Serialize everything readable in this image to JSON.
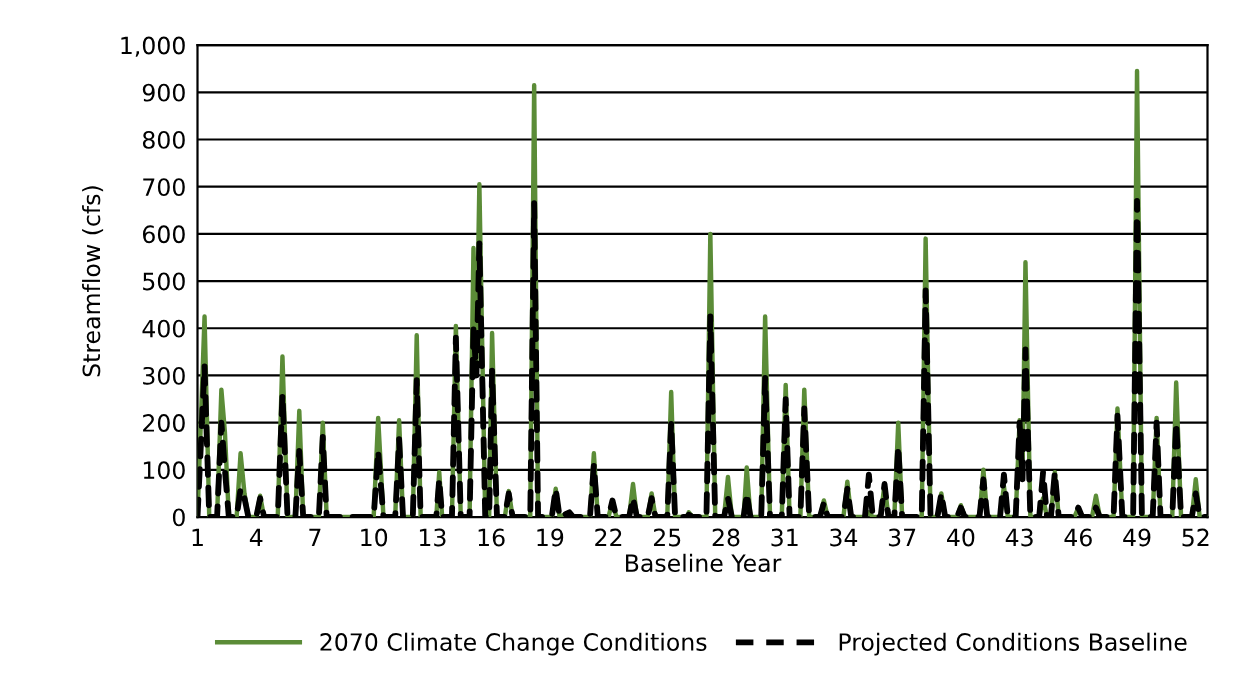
{
  "chart_data": {
    "type": "line",
    "xlabel": "Baseline Year",
    "ylabel": "Streamflow (cfs)",
    "x": [
      1.0,
      1.36,
      1.6,
      2.0,
      2.22,
      2.4,
      2.6,
      3.0,
      3.2,
      3.4,
      3.6,
      4.0,
      4.2,
      4.4,
      5.1,
      5.34,
      5.6,
      6.0,
      6.2,
      6.4,
      7.2,
      7.4,
      7.6,
      10.0,
      10.23,
      10.5,
      11.1,
      11.3,
      11.5,
      12.0,
      12.2,
      12.4,
      13.2,
      13.35,
      13.5,
      14.0,
      14.2,
      14.45,
      14.9,
      15.1,
      15.25,
      15.4,
      15.7,
      15.9,
      16.05,
      16.3,
      16.7,
      16.9,
      17.1,
      18.0,
      18.2,
      18.4,
      19.1,
      19.3,
      19.5,
      20.0,
      20.2,
      21.05,
      21.25,
      21.45,
      22.0,
      22.2,
      22.4,
      23.05,
      23.25,
      23.45,
      24.0,
      24.2,
      24.4,
      25.0,
      25.2,
      25.4,
      26.0,
      26.1,
      26.3,
      27.0,
      27.2,
      27.45,
      27.9,
      28.1,
      28.3,
      28.9,
      29.06,
      29.25,
      29.8,
      30.0,
      30.25,
      30.85,
      31.05,
      31.25,
      31.8,
      32.0,
      32.25,
      32.8,
      33.0,
      33.2,
      34.0,
      34.2,
      34.4,
      35.1,
      35.3,
      35.5,
      35.9,
      36.1,
      36.3,
      36.6,
      36.8,
      37.0,
      38.0,
      38.2,
      38.45,
      38.8,
      39.0,
      39.2,
      39.8,
      40.0,
      40.2,
      40.95,
      41.15,
      41.35,
      42.0,
      42.2,
      42.4,
      42.8,
      43.0,
      43.15,
      43.3,
      43.55,
      44.0,
      44.2,
      44.4,
      44.6,
      44.8,
      45.0,
      45.8,
      46.0,
      46.2,
      46.7,
      46.9,
      47.1,
      47.8,
      48.0,
      48.25,
      48.8,
      49.0,
      49.25,
      49.8,
      50.0,
      50.2,
      50.8,
      51.0,
      51.25,
      51.8,
      52.0,
      52.2,
      52.6
    ],
    "series": [
      {
        "name": "2070 Climate Change Conditions",
        "color": "#5b8c37",
        "line_style": "solid",
        "values": [
          0,
          425,
          0,
          0,
          270,
          180,
          0,
          0,
          135,
          50,
          0,
          0,
          45,
          0,
          0,
          340,
          0,
          0,
          225,
          0,
          0,
          200,
          0,
          0,
          210,
          0,
          0,
          205,
          0,
          0,
          385,
          0,
          0,
          95,
          0,
          0,
          405,
          0,
          0,
          570,
          320,
          705,
          0,
          0,
          390,
          0,
          0,
          55,
          0,
          0,
          915,
          0,
          0,
          60,
          0,
          10,
          0,
          0,
          135,
          0,
          0,
          35,
          0,
          0,
          70,
          0,
          0,
          50,
          0,
          0,
          265,
          0,
          0,
          10,
          0,
          0,
          600,
          0,
          0,
          85,
          0,
          0,
          105,
          0,
          0,
          425,
          0,
          0,
          280,
          0,
          0,
          270,
          0,
          0,
          35,
          0,
          0,
          75,
          0,
          0,
          10,
          0,
          0,
          70,
          0,
          0,
          200,
          0,
          0,
          590,
          0,
          0,
          50,
          0,
          0,
          25,
          0,
          0,
          100,
          0,
          0,
          65,
          0,
          0,
          205,
          100,
          540,
          0,
          0,
          40,
          0,
          0,
          95,
          0,
          0,
          20,
          0,
          0,
          45,
          0,
          0,
          230,
          0,
          0,
          945,
          0,
          0,
          210,
          0,
          0,
          285,
          0,
          0,
          80,
          0,
          0
        ]
      },
      {
        "name": "Projected Conditions Baseline",
        "color": "#000000",
        "line_style": "dashed",
        "values": [
          0,
          320,
          0,
          0,
          200,
          100,
          0,
          0,
          60,
          40,
          0,
          0,
          40,
          0,
          0,
          260,
          0,
          0,
          140,
          0,
          0,
          170,
          0,
          0,
          140,
          0,
          0,
          165,
          0,
          0,
          290,
          0,
          0,
          80,
          0,
          0,
          380,
          0,
          0,
          400,
          300,
          580,
          0,
          0,
          310,
          0,
          0,
          50,
          0,
          0,
          665,
          0,
          0,
          60,
          0,
          10,
          0,
          0,
          110,
          0,
          0,
          35,
          0,
          0,
          40,
          0,
          0,
          40,
          0,
          0,
          200,
          0,
          0,
          5,
          0,
          0,
          425,
          0,
          0,
          40,
          0,
          0,
          50,
          0,
          0,
          295,
          0,
          0,
          250,
          0,
          0,
          230,
          0,
          0,
          30,
          0,
          0,
          60,
          0,
          0,
          90,
          0,
          0,
          70,
          0,
          0,
          150,
          0,
          0,
          480,
          0,
          0,
          50,
          0,
          0,
          20,
          0,
          0,
          80,
          0,
          0,
          90,
          0,
          0,
          200,
          80,
          355,
          0,
          0,
          95,
          0,
          0,
          95,
          0,
          0,
          20,
          0,
          0,
          20,
          0,
          0,
          215,
          0,
          0,
          670,
          0,
          0,
          200,
          0,
          0,
          200,
          0,
          0,
          50,
          0,
          0
        ]
      }
    ],
    "xlim": [
      1.0,
      52.6
    ],
    "xticks": [
      1,
      4,
      7,
      10,
      13,
      16,
      19,
      22,
      25,
      28,
      31,
      34,
      37,
      40,
      43,
      46,
      49,
      52
    ],
    "ylim": [
      0,
      1000
    ],
    "yticks": [
      0,
      100,
      200,
      300,
      400,
      500,
      600,
      700,
      800,
      900,
      {
        "value": 1000,
        "label": "1,000"
      }
    ],
    "grid": "y",
    "legend": "bottom"
  }
}
